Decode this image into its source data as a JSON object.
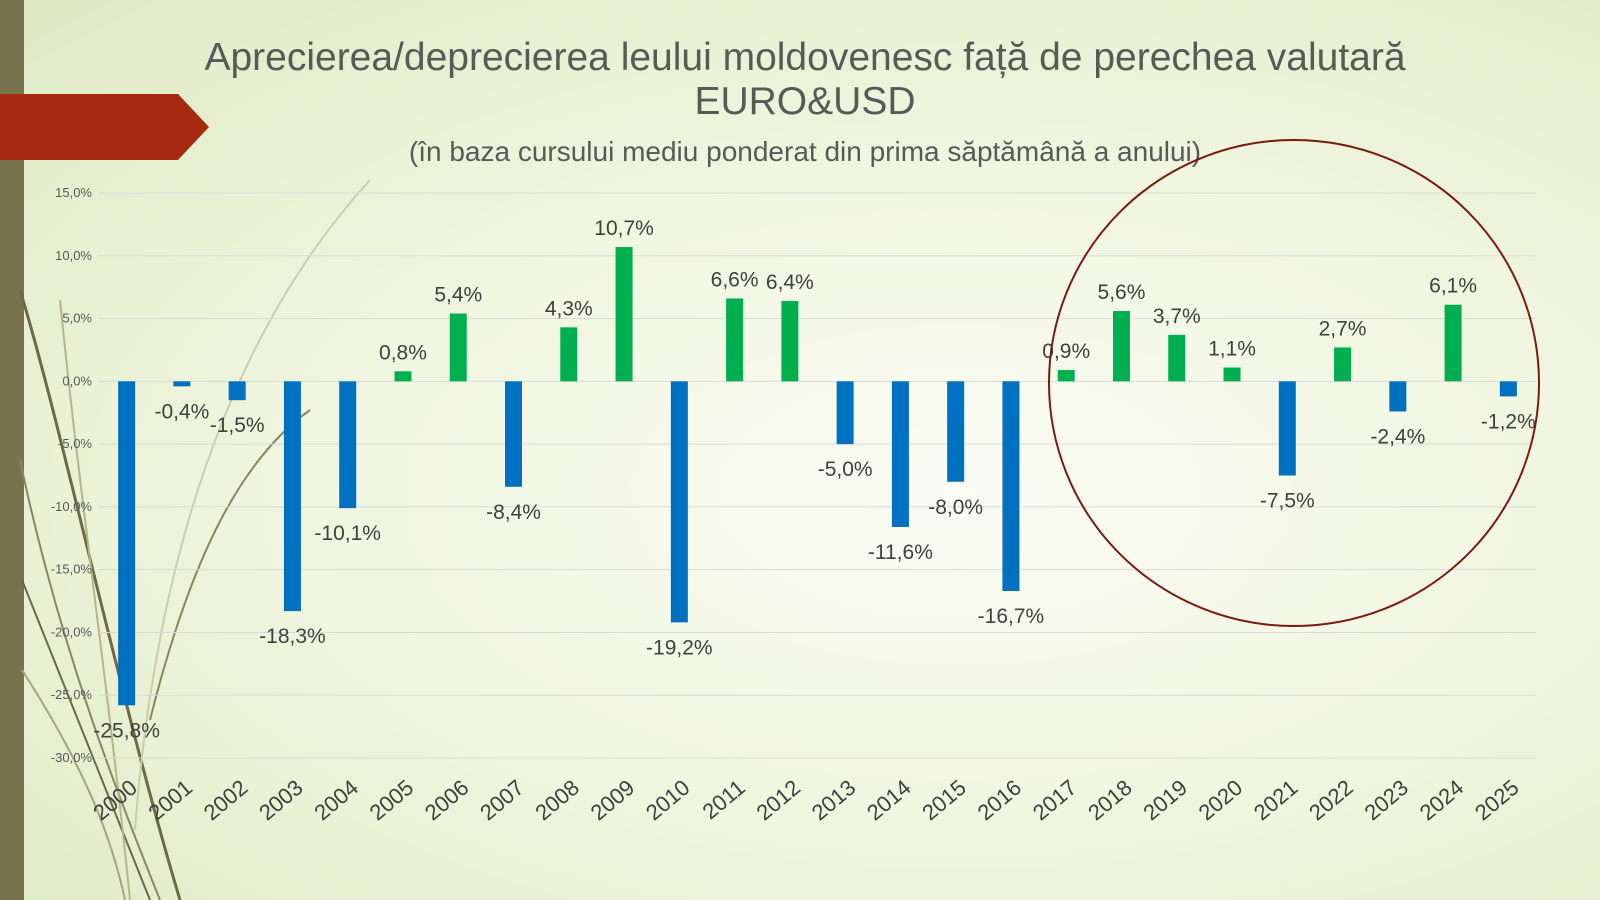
{
  "chart_data": {
    "type": "bar",
    "title": "Aprecierea/deprecierea leului moldovenesc față de perechea valutară EURO&USD",
    "subtitle": "(în baza cursului mediu ponderat din prima săptămână a anului)",
    "categories": [
      "2000",
      "2001",
      "2002",
      "2003",
      "2004",
      "2005",
      "2006",
      "2007",
      "2008",
      "2009",
      "2010",
      "2011",
      "2012",
      "2013",
      "2014",
      "2015",
      "2016",
      "2017",
      "2018",
      "2019",
      "2020",
      "2021",
      "2022",
      "2023",
      "2024",
      "2025"
    ],
    "values": [
      -25.8,
      -0.4,
      -1.5,
      -18.3,
      -10.1,
      0.8,
      5.4,
      -8.4,
      4.3,
      10.7,
      -19.2,
      6.6,
      6.4,
      -5.0,
      -11.6,
      -8.0,
      -16.7,
      0.9,
      5.6,
      3.7,
      1.1,
      -7.5,
      2.7,
      -2.4,
      6.1,
      -1.2
    ],
    "data_labels": [
      "-25,8%",
      "-0,4%",
      "-1,5%",
      "-18,3%",
      "-10,1%",
      "0,8%",
      "5,4%",
      "-8,4%",
      "4,3%",
      "10,7%",
      "-19,2%",
      "6,6%",
      "6,4%",
      "-5,0%",
      "-11,6%",
      "-8,0%",
      "-16,7%",
      "0,9%",
      "5,6%",
      "3,7%",
      "1,1%",
      "-7,5%",
      "2,7%",
      "-2,4%",
      "6,1%",
      "-1,2%"
    ],
    "yticks": [
      15,
      10,
      5,
      0,
      -5,
      -10,
      -15,
      -20,
      -25,
      -30
    ],
    "ytick_labels": [
      "15,0%",
      "10,0%",
      "5,0%",
      "0,0%",
      "-5,0%",
      "-10,0%",
      "-15,0%",
      "-20,0%",
      "-25,0%",
      "-30,0%"
    ],
    "ylim": [
      -30,
      15
    ],
    "xlabel": "",
    "ylabel": "",
    "grid": true,
    "colors": {
      "positive": "#00b050",
      "negative": "#0070c0"
    },
    "annotation": {
      "type": "circle",
      "highlight_from": "2017",
      "highlight_to": "2025",
      "color": "#7b1a10"
    }
  },
  "theme": {
    "side_bar": "#77734f",
    "tab_color": "#a52a10"
  }
}
